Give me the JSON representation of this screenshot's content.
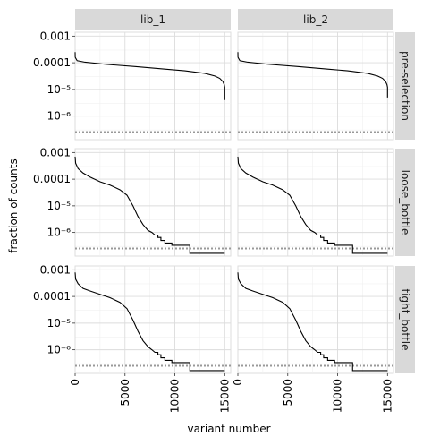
{
  "chart_data": {
    "type": "line",
    "facet_columns": [
      "lib_1",
      "lib_2"
    ],
    "facet_rows": [
      "pre-selection",
      "loose_bottle",
      "tight_bottle"
    ],
    "xlabel": "variant number",
    "ylabel": "fraction of counts",
    "x_scale": "linear",
    "y_scale": "log",
    "xlim": [
      0,
      15600
    ],
    "ylim": [
      1.3e-07,
      0.0014
    ],
    "x_ticks": [
      0,
      5000,
      10000,
      15000
    ],
    "x_tick_labels": [
      "0",
      "5000",
      "10000",
      "15000"
    ],
    "y_ticks": [
      1e-06,
      1e-05,
      0.0001,
      0.001
    ],
    "y_tick_labels": [
      "10⁻⁶",
      "10⁻⁵",
      "0.0001",
      "0.001"
    ],
    "grid": true,
    "reference_line": {
      "style": "dotted",
      "color": "#999999",
      "y": 2.5e-07
    },
    "line_color": "#000000",
    "panels": [
      {
        "row": "pre-selection",
        "col": "lib_1",
        "x": [
          0,
          10,
          200,
          1000,
          3000,
          6000,
          9000,
          11000,
          13000,
          14000,
          14500,
          14800,
          14950,
          15000,
          15000
        ],
        "y": [
          0.00025,
          0.00016,
          0.00012,
          0.000105,
          8.8e-05,
          7.2e-05,
          5.8e-05,
          5e-05,
          4e-05,
          3.2e-05,
          2.6e-05,
          2e-05,
          1.5e-05,
          1.2e-05,
          4e-06
        ]
      },
      {
        "row": "pre-selection",
        "col": "lib_2",
        "x": [
          0,
          10,
          200,
          1000,
          3000,
          6000,
          9000,
          11000,
          13000,
          14000,
          14500,
          14800,
          14950,
          15000,
          15000
        ],
        "y": [
          0.00025,
          0.00016,
          0.00012,
          0.000105,
          8.8e-05,
          7.2e-05,
          5.8e-05,
          5e-05,
          4e-05,
          3.2e-05,
          2.6e-05,
          2e-05,
          1.5e-05,
          1.2e-05,
          5e-06
        ]
      },
      {
        "row": "loose_bottle",
        "col": "lib_1",
        "x": [
          0,
          50,
          300,
          800,
          1500,
          2500,
          3500,
          4500,
          5200,
          5800,
          6300,
          6800,
          7300,
          7700,
          8000,
          8300,
          8300,
          8600,
          8600,
          9000,
          9000,
          9700,
          9700,
          11500,
          11500,
          15000
        ],
        "y": [
          0.0007,
          0.0004,
          0.00025,
          0.00017,
          0.00012,
          8e-05,
          6e-05,
          4e-05,
          2.5e-05,
          1e-05,
          4e-06,
          2e-06,
          1.2e-06,
          1e-06,
          8e-07,
          8e-07,
          6.5e-07,
          6.5e-07,
          5e-07,
          5e-07,
          4e-07,
          4e-07,
          3.3e-07,
          3.3e-07,
          1.65e-07,
          1.65e-07
        ]
      },
      {
        "row": "loose_bottle",
        "col": "lib_2",
        "x": [
          0,
          50,
          300,
          800,
          1500,
          2500,
          3500,
          4500,
          5200,
          5800,
          6300,
          6800,
          7300,
          7700,
          8000,
          8300,
          8300,
          8600,
          8600,
          9000,
          9000,
          9700,
          9700,
          11500,
          11500,
          15000
        ],
        "y": [
          0.0007,
          0.0004,
          0.00025,
          0.00017,
          0.00012,
          8e-05,
          6e-05,
          4e-05,
          2.5e-05,
          1e-05,
          4e-06,
          2e-06,
          1.2e-06,
          1e-06,
          8e-07,
          8e-07,
          6.5e-07,
          6.5e-07,
          5e-07,
          5e-07,
          4e-07,
          4e-07,
          3.3e-07,
          3.3e-07,
          1.65e-07,
          1.65e-07
        ]
      },
      {
        "row": "tight_bottle",
        "col": "lib_1",
        "x": [
          0,
          50,
          300,
          800,
          1500,
          2500,
          3500,
          4500,
          5200,
          5800,
          6300,
          6800,
          7300,
          7700,
          8000,
          8300,
          8300,
          8600,
          8600,
          9000,
          9000,
          9700,
          9700,
          11500,
          11500,
          15000
        ],
        "y": [
          0.0008,
          0.00045,
          0.0003,
          0.0002,
          0.00016,
          0.00012,
          9e-05,
          6e-05,
          3.5e-05,
          1.3e-05,
          5e-06,
          2.2e-06,
          1.3e-06,
          1e-06,
          8e-07,
          8e-07,
          6.5e-07,
          6.5e-07,
          5e-07,
          5e-07,
          4e-07,
          4e-07,
          3.3e-07,
          3.3e-07,
          1.65e-07,
          1.65e-07
        ]
      },
      {
        "row": "tight_bottle",
        "col": "lib_2",
        "x": [
          0,
          50,
          300,
          800,
          1500,
          2500,
          3500,
          4500,
          5200,
          5800,
          6300,
          6800,
          7300,
          7700,
          8000,
          8300,
          8300,
          8600,
          8600,
          9000,
          9000,
          9700,
          9700,
          11500,
          11500,
          15000
        ],
        "y": [
          0.0008,
          0.00045,
          0.0003,
          0.0002,
          0.00016,
          0.00012,
          9e-05,
          6e-05,
          3.5e-05,
          1.3e-05,
          5e-06,
          2.2e-06,
          1.3e-06,
          1e-06,
          8e-07,
          8e-07,
          6.5e-07,
          6.5e-07,
          5e-07,
          5e-07,
          4e-07,
          4e-07,
          3.3e-07,
          3.3e-07,
          1.65e-07,
          1.65e-07
        ]
      }
    ]
  }
}
